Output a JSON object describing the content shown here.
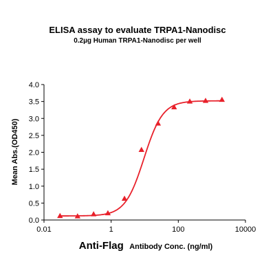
{
  "chart_data": {
    "type": "scatter",
    "title": "ELISA assay to evaluate TRPA1-Nanodisc",
    "subtitle": "0.2µg Human TRPA1-Nanodisc per well",
    "xlabel_prefix": "Anti-Flag",
    "xlabel_rest": "Antibody Conc. (ng/ml)",
    "ylabel": "Mean Abs.(OD450)",
    "x_scale": "log",
    "xlim": [
      0.01,
      10000
    ],
    "ylim": [
      0,
      4.0
    ],
    "x_ticks": [
      0.01,
      1,
      100,
      10000
    ],
    "x_tick_labels": [
      "0.01",
      "1",
      "100",
      "10000"
    ],
    "y_ticks": [
      0,
      0.5,
      1.0,
      1.5,
      2.0,
      2.5,
      3.0,
      3.5,
      4.0
    ],
    "y_tick_labels": [
      "0.0",
      "0.5",
      "1.0",
      "1.5",
      "2.0",
      "2.5",
      "3.0",
      "3.5",
      "4.0"
    ],
    "grid": false,
    "legend": "none",
    "series": [
      {
        "marker": "triangle",
        "color": "#e8202a",
        "x": [
          0.03,
          0.1,
          0.3,
          0.8,
          2.5,
          8,
          25,
          75,
          220,
          650,
          2000
        ],
        "y": [
          0.12,
          0.11,
          0.17,
          0.2,
          0.63,
          2.07,
          2.85,
          3.33,
          3.5,
          3.52,
          3.55
        ]
      }
    ],
    "fit_curve": {
      "color": "#e8202a",
      "bottom": 0.12,
      "top": 3.52,
      "ec50": 9.5,
      "hill": 1.55
    }
  }
}
